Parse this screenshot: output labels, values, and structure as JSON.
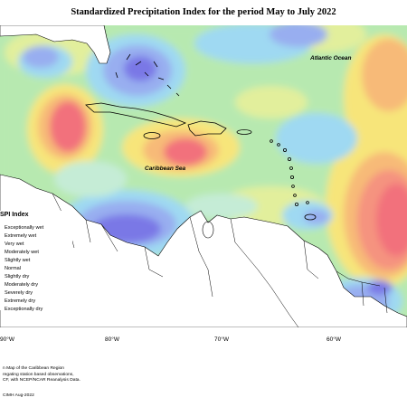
{
  "title": "Standardized Precipitation Index for the period May to July 2022",
  "map": {
    "ocean_labels": {
      "atlantic": "Atlantic Ocean",
      "caribbean": "Caribbean Sea"
    },
    "longitude_ticks": [
      "90°W",
      "80°W",
      "70°W",
      "60°W"
    ],
    "colors": {
      "extreme_wet": "#7a78e6",
      "very_wet": "#98aef0",
      "mod_wet": "#9fd9f2",
      "slight_wet": "#c5ecd6",
      "normal": "#b7e9b0",
      "slight_dry": "#e2ef9c",
      "mod_dry": "#f7e57a",
      "sev_dry": "#f7ba78",
      "extreme_dry": "#f5937f",
      "exceptional_dry": "#f2717c"
    }
  },
  "legend": {
    "title": "SPI Index",
    "items": [
      "Exceptionally wet",
      "Extremely wet",
      "Very wet",
      "Moderately wet",
      "Slightly wet",
      "Normal",
      "Slightly dry",
      "Moderately dry",
      "Severely dry",
      "Extremely dry",
      "Exceptionally dry"
    ]
  },
  "footnote": {
    "lines": [
      "n Map of the Caribbean Region",
      "regating station based observations,",
      "CF, with NCEP/NCAR Reanalysis Data."
    ],
    "credit": "CIMH Aug-2022"
  }
}
